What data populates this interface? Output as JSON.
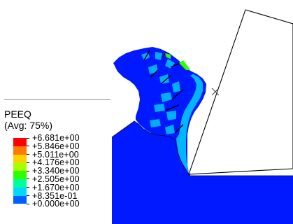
{
  "legend": {
    "title": "PEEQ",
    "subtitle": "(Avg: 75%)",
    "entries": [
      {
        "value": "+6.681e+00",
        "color": "#ff0000"
      },
      {
        "value": "+5.846e+00",
        "color": "#ff7a00"
      },
      {
        "value": "+5.011e+00",
        "color": "#ffd000"
      },
      {
        "value": "+4.176e+00",
        "color": "#a8ff00"
      },
      {
        "value": "+3.340e+00",
        "color": "#2dff00"
      },
      {
        "value": "+2.505e+00",
        "color": "#00ff9a"
      },
      {
        "value": "+1.670e+00",
        "color": "#00d8ff"
      },
      {
        "value": "+8.351e-01",
        "color": "#0060ff"
      },
      {
        "value": "+0.000e+00",
        "color": null
      }
    ]
  },
  "colors": {
    "workpiece_base": "#0019ff",
    "contour_cyan": "#00d8ff",
    "contour_green": "#2dff00",
    "chip_outline": "#000000",
    "tool_outline": "#000000"
  },
  "icons": {
    "tool_reference_point": "x-mark-icon"
  }
}
